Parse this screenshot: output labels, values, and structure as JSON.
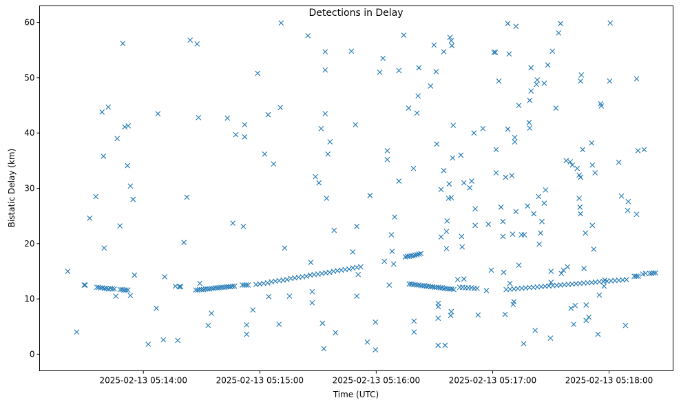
{
  "chart_data": {
    "type": "scatter",
    "title": "Detections in Delay",
    "xlabel": "Time (UTC)",
    "ylabel": "Bistatic Delay (km)",
    "x_unit": "seconds after 2025-02-13 05:14:00 UTC",
    "xlim": [
      -53.5,
      273
    ],
    "ylim": [
      -3,
      63
    ],
    "grid": false,
    "marker": "x",
    "color": "#1f77b4",
    "x_ticks": [
      {
        "value": 0,
        "label": "2025-02-13 05:14:00"
      },
      {
        "value": 60,
        "label": "2025-02-13 05:15:00"
      },
      {
        "value": 120,
        "label": "2025-02-13 05:16:00"
      },
      {
        "value": 180,
        "label": "2025-02-13 05:17:00"
      },
      {
        "value": 240,
        "label": "2025-02-13 05:18:00"
      }
    ],
    "y_ticks": [
      {
        "value": 0,
        "label": "0"
      },
      {
        "value": 10,
        "label": "10"
      },
      {
        "value": 20,
        "label": "20"
      },
      {
        "value": 30,
        "label": "30"
      },
      {
        "value": 40,
        "label": "40"
      },
      {
        "value": 50,
        "label": "50"
      },
      {
        "value": 60,
        "label": "60"
      }
    ],
    "points": [
      [
        -39,
        15
      ],
      [
        -34.4,
        4
      ],
      [
        -30.5,
        12.5
      ],
      [
        -30,
        12.5
      ],
      [
        -27.7,
        24.6
      ],
      [
        -24.5,
        28.5
      ],
      [
        -21.3,
        43.8
      ],
      [
        -20.6,
        35.8
      ],
      [
        -20.2,
        19.2
      ],
      [
        -18.1,
        44.7
      ],
      [
        -14.2,
        10.5
      ],
      [
        -13.5,
        39
      ],
      [
        -12.1,
        23.2
      ],
      [
        -10.6,
        56.2
      ],
      [
        -9.6,
        41.1
      ],
      [
        -8.2,
        34.1
      ],
      [
        -7.8,
        41.3
      ],
      [
        -6.7,
        30.4
      ],
      [
        -6.7,
        10.6
      ],
      [
        -5.3,
        28
      ],
      [
        -4.6,
        14.3
      ],
      [
        2.5,
        1.8
      ],
      [
        6.7,
        8.3
      ],
      [
        7.5,
        43.5
      ],
      [
        10.3,
        2.6
      ],
      [
        11,
        14
      ],
      [
        16.5,
        12.3
      ],
      [
        17.7,
        2.5
      ],
      [
        18.5,
        12.2
      ],
      [
        19.2,
        12.2
      ],
      [
        20.9,
        20.2
      ],
      [
        22.4,
        28.4
      ],
      [
        24.1,
        56.8
      ],
      [
        27.7,
        56.1
      ],
      [
        28.4,
        42.8
      ],
      [
        29.1,
        12.8
      ],
      [
        33.4,
        5.2
      ],
      [
        35.1,
        7.4
      ],
      [
        43.3,
        42.7
      ],
      [
        46.1,
        23.7
      ],
      [
        47.6,
        39.7
      ],
      [
        51.5,
        23.1
      ],
      [
        52.2,
        41.5
      ],
      [
        52.2,
        39.3
      ],
      [
        53.2,
        5.3
      ],
      [
        53.2,
        3.6
      ],
      [
        56.4,
        8
      ],
      [
        58.9,
        50.8
      ],
      [
        62.5,
        36.2
      ],
      [
        64.3,
        43.3
      ],
      [
        64.6,
        10.4
      ],
      [
        67.1,
        34.4
      ],
      [
        69.9,
        5.4
      ],
      [
        70.6,
        44.6
      ],
      [
        71,
        59.9
      ],
      [
        72.8,
        19.2
      ],
      [
        75.3,
        10.5
      ],
      [
        84.8,
        57.6
      ],
      [
        86.3,
        16.6
      ],
      [
        87,
        11.3
      ],
      [
        87,
        9.3
      ],
      [
        88.7,
        32.1
      ],
      [
        90.5,
        31
      ],
      [
        91.6,
        40.8
      ],
      [
        92.3,
        5.6
      ],
      [
        93,
        1
      ],
      [
        93.7,
        54.7
      ],
      [
        93.7,
        51.4
      ],
      [
        93.7,
        43.5
      ],
      [
        94.4,
        28.2
      ],
      [
        95.1,
        36.2
      ],
      [
        96.2,
        38.4
      ],
      [
        98.3,
        22.4
      ],
      [
        99,
        3.9
      ],
      [
        107.2,
        54.8
      ],
      [
        107.9,
        18.5
      ],
      [
        109.3,
        41.5
      ],
      [
        110,
        23.1
      ],
      [
        110,
        10.5
      ],
      [
        110.7,
        14.4
      ],
      [
        115.4,
        2.2
      ],
      [
        116.8,
        28.7
      ],
      [
        119.6,
        5.8
      ],
      [
        119.6,
        0.8
      ],
      [
        121.8,
        51
      ],
      [
        123.5,
        53.5
      ],
      [
        124.2,
        16.8
      ],
      [
        125.7,
        36.8
      ],
      [
        125.7,
        35.2
      ],
      [
        126.7,
        12.5
      ],
      [
        127.8,
        21.6
      ],
      [
        128.2,
        18.6
      ],
      [
        129.5,
        24.8
      ],
      [
        129,
        16.3
      ],
      [
        131.7,
        31.3
      ],
      [
        131.7,
        51.3
      ],
      [
        134.2,
        57.7
      ],
      [
        136.7,
        44.5
      ],
      [
        139.2,
        33.6
      ],
      [
        139.5,
        6
      ],
      [
        139.5,
        4
      ],
      [
        141,
        43.6
      ],
      [
        141.6,
        46.7
      ],
      [
        142,
        51.8
      ],
      [
        148,
        48.5
      ],
      [
        149.8,
        55.9
      ],
      [
        150.9,
        51.1
      ],
      [
        151.2,
        38
      ],
      [
        151.9,
        1.6
      ],
      [
        155.5,
        1.6
      ],
      [
        152,
        8.6
      ],
      [
        152,
        9.2
      ],
      [
        151.9,
        6.5
      ],
      [
        153.4,
        29.8
      ],
      [
        153.4,
        21.2
      ],
      [
        154.8,
        33.2
      ],
      [
        154.8,
        54.7
      ],
      [
        156.2,
        22.2
      ],
      [
        156.5,
        24.1
      ],
      [
        156.2,
        19.1
      ],
      [
        157.3,
        28.2
      ],
      [
        158.7,
        28.3
      ],
      [
        157.6,
        30.8
      ],
      [
        158,
        57.3
      ],
      [
        158.7,
        56.7
      ],
      [
        159,
        55.8
      ],
      [
        159.4,
        35.5
      ],
      [
        159.7,
        41.4
      ],
      [
        158.7,
        7.7
      ],
      [
        158.4,
        7
      ],
      [
        162,
        13.5
      ],
      [
        165.2,
        13.6
      ],
      [
        163.6,
        36
      ],
      [
        164,
        21.3
      ],
      [
        164.3,
        19.4
      ],
      [
        165.2,
        31
      ],
      [
        168.2,
        30.1
      ],
      [
        169.2,
        31.3
      ],
      [
        170.4,
        40
      ],
      [
        171,
        26.3
      ],
      [
        171,
        23.3
      ],
      [
        172.5,
        7.1
      ],
      [
        175,
        40.8
      ],
      [
        176.8,
        11.5
      ],
      [
        177.8,
        23.5
      ],
      [
        179.3,
        15.2
      ],
      [
        180.7,
        54.6
      ],
      [
        181.4,
        54.6
      ],
      [
        181.8,
        37
      ],
      [
        181.8,
        32.8
      ],
      [
        183.2,
        49.4
      ],
      [
        184.3,
        26.6
      ],
      [
        185.3,
        24
      ],
      [
        185.3,
        21.3
      ],
      [
        186.4,
        7.2
      ],
      [
        185.7,
        14.8
      ],
      [
        186.7,
        32
      ],
      [
        187.8,
        59.8
      ],
      [
        188.5,
        54.3
      ],
      [
        187.8,
        40.7
      ],
      [
        188.9,
        12.8
      ],
      [
        189.9,
        32.3
      ],
      [
        190.3,
        21.7
      ],
      [
        190.6,
        9
      ],
      [
        191,
        9.5
      ],
      [
        191.4,
        39.2
      ],
      [
        191.4,
        38.4
      ],
      [
        192,
        59.3
      ],
      [
        192,
        25.8
      ],
      [
        193.5,
        45
      ],
      [
        193.5,
        16.1
      ],
      [
        194.9,
        21.6
      ],
      [
        196.3,
        21.6
      ],
      [
        196,
        1.9
      ],
      [
        198,
        26.8
      ],
      [
        198.8,
        41.9
      ],
      [
        199.1,
        40.9
      ],
      [
        199.1,
        45.9
      ],
      [
        199.8,
        47.6
      ],
      [
        199.8,
        51.8
      ],
      [
        201.2,
        25.4
      ],
      [
        201.9,
        4.3
      ],
      [
        202.6,
        48.8
      ],
      [
        203,
        49.6
      ],
      [
        203.7,
        28.5
      ],
      [
        204,
        19.9
      ],
      [
        204.7,
        21.9
      ],
      [
        205.4,
        24
      ],
      [
        206.6,
        49
      ],
      [
        206.6,
        27.3
      ],
      [
        207.3,
        29.7
      ],
      [
        208.4,
        52.3
      ],
      [
        209.8,
        2.9
      ],
      [
        210.1,
        13
      ],
      [
        210.1,
        15
      ],
      [
        210.8,
        54.8
      ],
      [
        212.6,
        44.5
      ],
      [
        214,
        58.1
      ],
      [
        215,
        59.8
      ],
      [
        215.4,
        14.6
      ],
      [
        216.5,
        15.2
      ],
      [
        218.6,
        15.8
      ],
      [
        217.9,
        35
      ],
      [
        220,
        34.8
      ],
      [
        221.1,
        34.2
      ],
      [
        220.4,
        8.3
      ],
      [
        221.8,
        5.4
      ],
      [
        222.5,
        8.8
      ],
      [
        223.6,
        33.6
      ],
      [
        224.6,
        32.4
      ],
      [
        225.3,
        32
      ],
      [
        224.6,
        28.2
      ],
      [
        225,
        26.6
      ],
      [
        225.3,
        25.4
      ],
      [
        225.3,
        49.4
      ],
      [
        225.7,
        50.5
      ],
      [
        226.4,
        37
      ],
      [
        227.1,
        15.5
      ],
      [
        227.8,
        21.9
      ],
      [
        228.2,
        6.1
      ],
      [
        229.6,
        6.7
      ],
      [
        228.2,
        8.9
      ],
      [
        231,
        38.2
      ],
      [
        231.4,
        23.3
      ],
      [
        231.4,
        34.2
      ],
      [
        232.1,
        19
      ],
      [
        232.8,
        32.8
      ],
      [
        234.3,
        3.6
      ],
      [
        235,
        10.7
      ],
      [
        235.7,
        45.3
      ],
      [
        236,
        44.9
      ],
      [
        237.5,
        12.3
      ],
      [
        237.8,
        13.4
      ],
      [
        240.3,
        49.4
      ],
      [
        240.6,
        59.9
      ],
      [
        245,
        34.7
      ],
      [
        246.4,
        28.6
      ],
      [
        248.5,
        5.2
      ],
      [
        249.6,
        26
      ],
      [
        249.9,
        27.6
      ],
      [
        254.2,
        25.3
      ],
      [
        254.2,
        49.8
      ],
      [
        254.9,
        36.8
      ],
      [
        258.1,
        37
      ],
      [
        257.4,
        14.5
      ],
      [
        258.8,
        14.6
      ],
      [
        -24,
        12.1
      ],
      [
        -23,
        12.1
      ],
      [
        -22,
        12.0
      ],
      [
        -21,
        12.0
      ],
      [
        -20,
        11.9
      ],
      [
        -19,
        11.9
      ],
      [
        -18,
        11.8
      ],
      [
        -17,
        11.9
      ],
      [
        -16,
        11.8
      ],
      [
        -15,
        11.8
      ],
      [
        -12,
        11.7
      ],
      [
        -11,
        11.7
      ],
      [
        -10,
        11.6
      ],
      [
        -9,
        11.6
      ],
      [
        -8,
        11.6
      ],
      [
        27,
        11.6
      ],
      [
        28,
        11.6
      ],
      [
        29,
        11.7
      ],
      [
        30,
        11.7
      ],
      [
        31,
        11.7
      ],
      [
        32,
        11.8
      ],
      [
        33,
        11.8
      ],
      [
        34,
        11.8
      ],
      [
        35,
        11.9
      ],
      [
        36,
        11.9
      ],
      [
        37,
        12.0
      ],
      [
        38,
        12.0
      ],
      [
        39,
        12.0
      ],
      [
        40,
        12.1
      ],
      [
        41,
        12.1
      ],
      [
        42,
        12.1
      ],
      [
        43,
        12.2
      ],
      [
        44,
        12.2
      ],
      [
        45,
        12.2
      ],
      [
        46,
        12.3
      ],
      [
        47,
        12.3
      ],
      [
        51,
        12.5
      ],
      [
        52,
        12.5
      ],
      [
        53,
        12.5
      ],
      [
        54,
        12.5
      ],
      [
        58,
        12.6
      ],
      [
        60,
        12.7
      ],
      [
        62,
        12.8
      ],
      [
        64,
        12.9
      ],
      [
        66,
        13.1
      ],
      [
        68,
        13.2
      ],
      [
        70,
        13.3
      ],
      [
        72,
        13.4
      ],
      [
        74,
        13.5
      ],
      [
        76,
        13.7
      ],
      [
        78,
        13.8
      ],
      [
        80,
        13.9
      ],
      [
        82,
        14.0
      ],
      [
        84,
        14.1
      ],
      [
        86,
        14.3
      ],
      [
        88,
        14.4
      ],
      [
        90,
        14.5
      ],
      [
        92,
        14.6
      ],
      [
        94,
        14.7
      ],
      [
        96,
        14.8
      ],
      [
        98,
        15.0
      ],
      [
        100,
        15.1
      ],
      [
        102,
        15.2
      ],
      [
        104,
        15.3
      ],
      [
        106,
        15.4
      ],
      [
        108,
        15.6
      ],
      [
        110,
        15.7
      ],
      [
        112,
        15.8
      ],
      [
        135,
        17.6
      ],
      [
        136,
        17.7
      ],
      [
        137,
        17.7
      ],
      [
        138,
        17.8
      ],
      [
        139,
        17.8
      ],
      [
        140,
        17.9
      ],
      [
        141,
        18.0
      ],
      [
        142,
        18.1
      ],
      [
        143,
        18.2
      ],
      [
        137,
        12.7
      ],
      [
        138,
        12.7
      ],
      [
        139,
        12.6
      ],
      [
        140,
        12.6
      ],
      [
        141,
        12.5
      ],
      [
        142,
        12.5
      ],
      [
        143,
        12.4
      ],
      [
        144,
        12.4
      ],
      [
        145,
        12.4
      ],
      [
        146,
        12.3
      ],
      [
        147,
        12.3
      ],
      [
        148,
        12.2
      ],
      [
        149,
        12.2
      ],
      [
        150,
        12.1
      ],
      [
        151,
        12.1
      ],
      [
        152,
        12.1
      ],
      [
        153,
        12.0
      ],
      [
        154,
        12.0
      ],
      [
        155,
        11.9
      ],
      [
        156,
        11.9
      ],
      [
        157,
        11.8
      ],
      [
        158,
        11.8
      ],
      [
        159,
        11.8
      ],
      [
        160,
        11.7
      ],
      [
        163,
        12.1
      ],
      [
        164.5,
        12.1
      ],
      [
        166,
        12.0
      ],
      [
        167.5,
        12.0
      ],
      [
        169,
        12.0
      ],
      [
        170.5,
        11.9
      ],
      [
        172,
        11.9
      ],
      [
        187,
        11.7
      ],
      [
        189,
        11.76
      ],
      [
        191,
        11.82
      ],
      [
        193,
        11.87
      ],
      [
        195,
        11.93
      ],
      [
        197,
        11.99
      ],
      [
        199,
        12.05
      ],
      [
        201,
        12.1
      ],
      [
        203,
        12.16
      ],
      [
        205,
        12.22
      ],
      [
        207,
        12.28
      ],
      [
        209,
        12.34
      ],
      [
        211,
        12.39
      ],
      [
        213,
        12.45
      ],
      [
        215,
        12.51
      ],
      [
        217,
        12.57
      ],
      [
        219,
        12.63
      ],
      [
        221,
        12.68
      ],
      [
        223,
        12.74
      ],
      [
        225,
        12.8
      ],
      [
        227,
        12.86
      ],
      [
        229,
        12.91
      ],
      [
        231,
        12.97
      ],
      [
        233,
        13.03
      ],
      [
        235,
        13.09
      ],
      [
        237,
        13.15
      ],
      [
        239,
        13.2
      ],
      [
        241,
        13.26
      ],
      [
        243,
        13.32
      ],
      [
        245,
        13.38
      ],
      [
        247,
        13.44
      ],
      [
        249,
        13.49
      ],
      [
        253,
        14.1
      ],
      [
        254,
        14.1
      ],
      [
        255,
        14.1
      ],
      [
        261,
        14.6
      ],
      [
        262,
        14.6
      ],
      [
        263,
        14.7
      ],
      [
        264,
        14.7
      ]
    ]
  }
}
